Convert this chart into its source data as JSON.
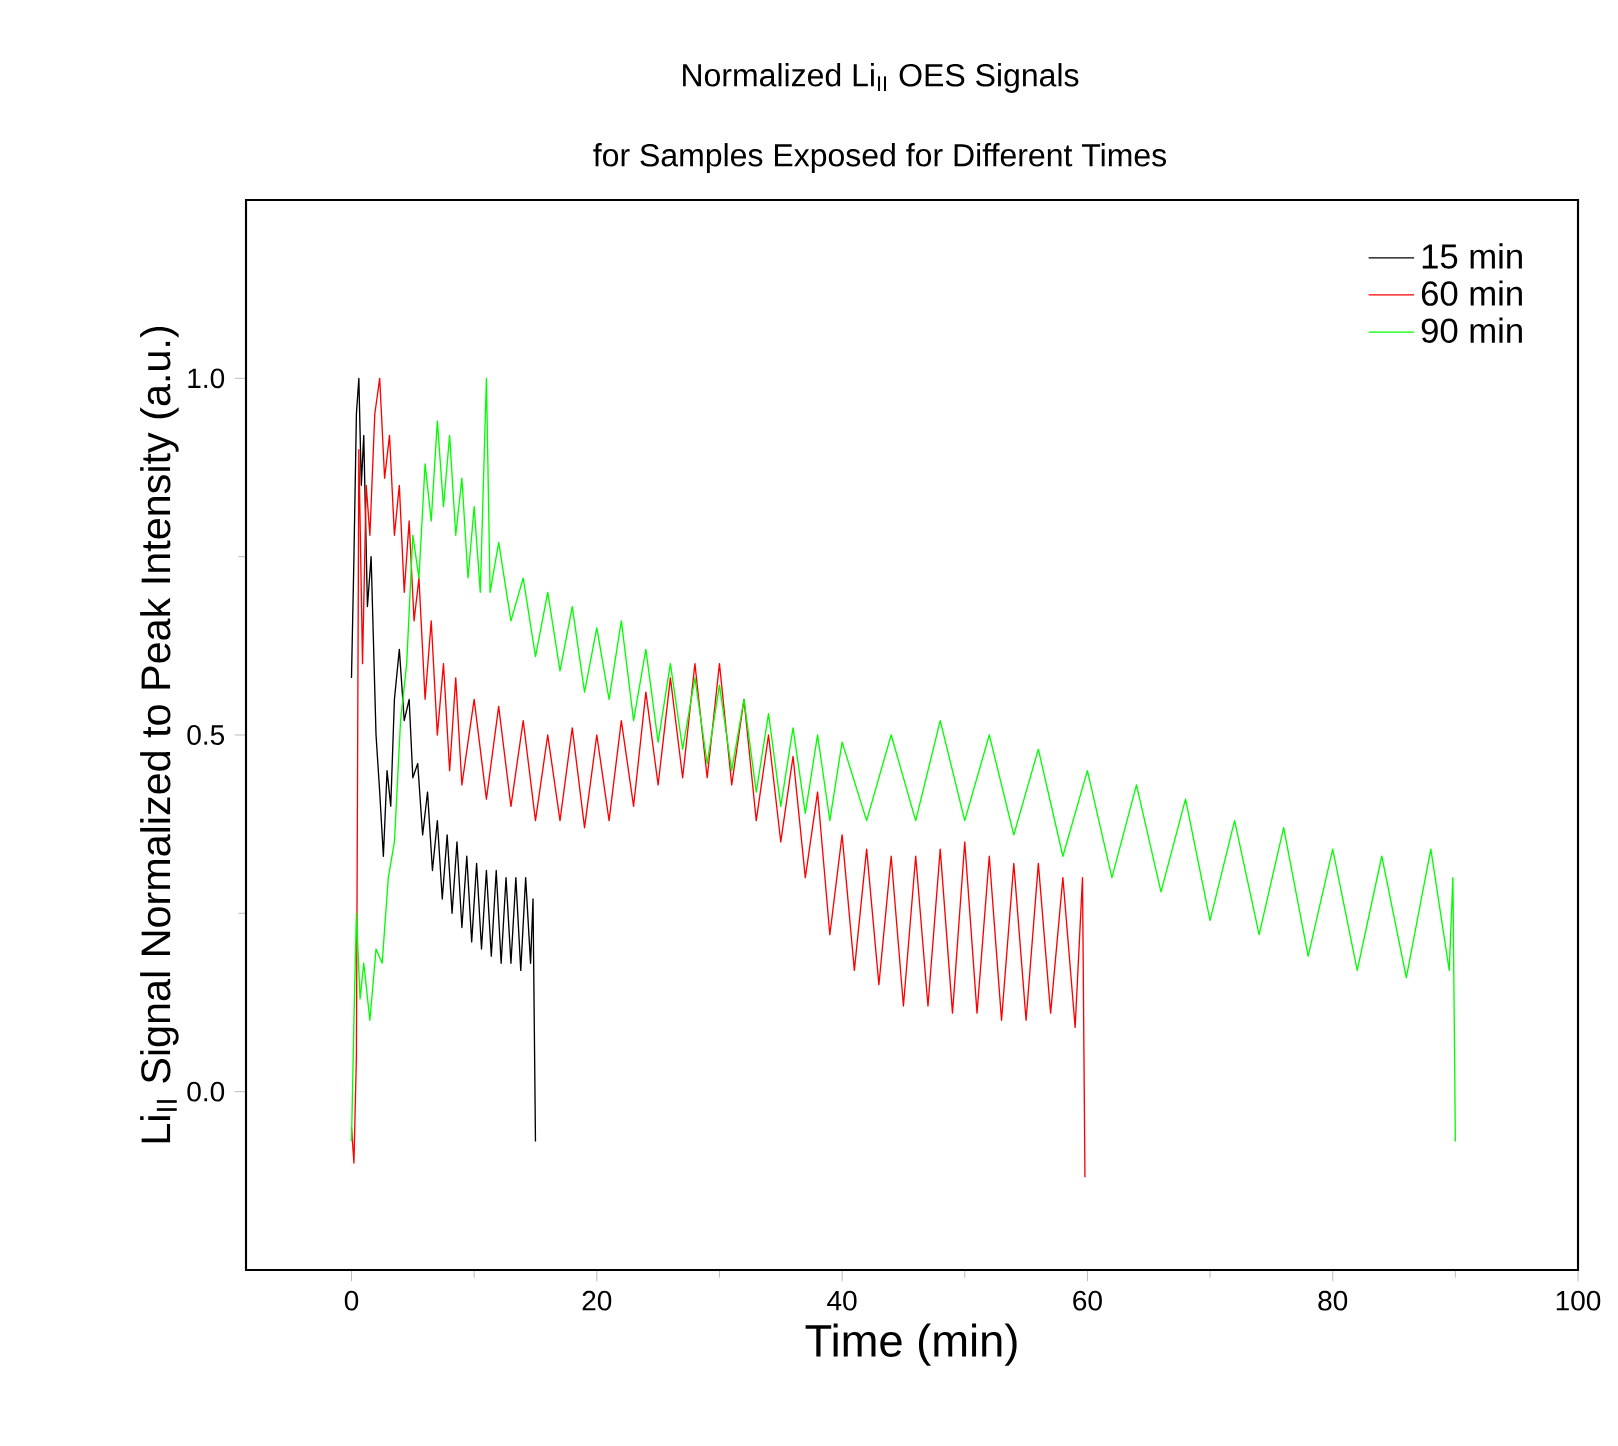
{
  "chart_data": {
    "type": "line",
    "title": "Normalized Li$_{II}$ OES Signals",
    "subtitle": "for Samples Exposed for Different Times",
    "xlabel": "Time (min)",
    "ylabel": "Li$_{II}$ Signal Normalized to Peak Intensity (a.u.)",
    "xlim": [
      -8.6,
      100
    ],
    "xticks": [
      0,
      20,
      40,
      60,
      80,
      100
    ],
    "ylim": [
      -0.25,
      1.25
    ],
    "yticks": [
      {
        "value": 0,
        "label": "0.0"
      },
      {
        "value": 0.5,
        "label": "0.5"
      },
      {
        "value": 1,
        "label": "1.0"
      }
    ],
    "legend": "top right",
    "grid": false,
    "marker": "none",
    "line_style": "solid",
    "series": [
      {
        "name": "15 min",
        "color": "#000000",
        "x": [
          0,
          0.2,
          0.4,
          0.6,
          0.8,
          1.0,
          1.3,
          1.6,
          2.0,
          2.3,
          2.6,
          2.9,
          3.2,
          3.5,
          3.9,
          4.3,
          4.7,
          5.0,
          5.4,
          5.8,
          6.2,
          6.6,
          7.0,
          7.4,
          7.8,
          8.2,
          8.6,
          9.0,
          9.4,
          9.8,
          10.2,
          10.6,
          11.0,
          11.4,
          11.8,
          12.2,
          12.6,
          13.0,
          13.4,
          13.8,
          14.2,
          14.6,
          14.8,
          15.0
        ],
        "values": [
          0.58,
          0.75,
          0.95,
          1.0,
          0.85,
          0.92,
          0.68,
          0.75,
          0.5,
          0.42,
          0.33,
          0.45,
          0.4,
          0.55,
          0.62,
          0.52,
          0.55,
          0.44,
          0.46,
          0.36,
          0.42,
          0.31,
          0.38,
          0.27,
          0.36,
          0.25,
          0.35,
          0.23,
          0.33,
          0.21,
          0.32,
          0.2,
          0.31,
          0.19,
          0.31,
          0.18,
          0.3,
          0.18,
          0.3,
          0.17,
          0.3,
          0.18,
          0.27,
          -0.07
        ]
      },
      {
        "name": "60 min",
        "color": "#ff0000",
        "x": [
          0,
          0.2,
          0.4,
          0.6,
          0.9,
          1.2,
          1.5,
          1.9,
          2.3,
          2.7,
          3.1,
          3.5,
          3.9,
          4.3,
          4.7,
          5.1,
          5.5,
          6,
          6.5,
          7,
          7.5,
          8,
          8.5,
          9,
          10,
          11,
          12,
          13,
          14,
          15,
          16,
          17,
          18,
          19,
          20,
          21,
          22,
          23,
          24,
          25,
          26,
          27,
          28,
          29,
          30,
          31,
          32,
          33,
          34,
          35,
          36,
          37,
          38,
          39,
          40,
          41,
          42,
          43,
          44,
          45,
          46,
          47,
          48,
          49,
          50,
          51,
          52,
          53,
          54,
          55,
          56,
          57,
          58,
          59,
          59.6,
          59.8
        ],
        "values": [
          -0.05,
          -0.1,
          0.05,
          0.9,
          0.6,
          0.85,
          0.78,
          0.95,
          1.0,
          0.86,
          0.92,
          0.78,
          0.85,
          0.7,
          0.8,
          0.66,
          0.72,
          0.55,
          0.66,
          0.5,
          0.6,
          0.45,
          0.58,
          0.43,
          0.55,
          0.41,
          0.54,
          0.4,
          0.52,
          0.38,
          0.5,
          0.38,
          0.51,
          0.37,
          0.5,
          0.38,
          0.52,
          0.4,
          0.56,
          0.43,
          0.58,
          0.44,
          0.6,
          0.44,
          0.6,
          0.43,
          0.55,
          0.38,
          0.5,
          0.35,
          0.47,
          0.3,
          0.42,
          0.22,
          0.36,
          0.17,
          0.34,
          0.15,
          0.33,
          0.12,
          0.33,
          0.12,
          0.34,
          0.11,
          0.35,
          0.11,
          0.33,
          0.1,
          0.32,
          0.1,
          0.32,
          0.11,
          0.3,
          0.09,
          0.3,
          -0.12
        ]
      },
      {
        "name": "90 min",
        "color": "#00ff00",
        "x": [
          0,
          0.2,
          0.4,
          0.7,
          1,
          1.5,
          2,
          2.5,
          3,
          3.5,
          4,
          4.5,
          5,
          5.5,
          6,
          6.5,
          7,
          7.5,
          8,
          8.5,
          9,
          9.5,
          10,
          10.5,
          11,
          11.3,
          12,
          13,
          14,
          15,
          16,
          17,
          18,
          19,
          20,
          21,
          22,
          23,
          24,
          25,
          26,
          27,
          28,
          29,
          30,
          31,
          32,
          33,
          34,
          35,
          36,
          37,
          38,
          39,
          40,
          42,
          44,
          46,
          48,
          50,
          52,
          54,
          56,
          58,
          60,
          62,
          64,
          66,
          68,
          70,
          72,
          74,
          76,
          78,
          80,
          82,
          84,
          86,
          88,
          89.5,
          89.8,
          90
        ],
        "values": [
          -0.07,
          0.1,
          0.25,
          0.13,
          0.18,
          0.1,
          0.2,
          0.18,
          0.3,
          0.35,
          0.52,
          0.6,
          0.78,
          0.72,
          0.88,
          0.8,
          0.94,
          0.82,
          0.92,
          0.78,
          0.86,
          0.72,
          0.82,
          0.7,
          1.0,
          0.7,
          0.77,
          0.66,
          0.72,
          0.61,
          0.7,
          0.59,
          0.68,
          0.56,
          0.65,
          0.55,
          0.66,
          0.52,
          0.62,
          0.49,
          0.6,
          0.48,
          0.58,
          0.46,
          0.57,
          0.45,
          0.55,
          0.42,
          0.53,
          0.4,
          0.51,
          0.39,
          0.5,
          0.38,
          0.49,
          0.38,
          0.5,
          0.38,
          0.52,
          0.38,
          0.5,
          0.36,
          0.48,
          0.33,
          0.45,
          0.3,
          0.43,
          0.28,
          0.41,
          0.24,
          0.38,
          0.22,
          0.37,
          0.19,
          0.34,
          0.17,
          0.33,
          0.16,
          0.34,
          0.17,
          0.3,
          -0.07
        ]
      }
    ]
  }
}
